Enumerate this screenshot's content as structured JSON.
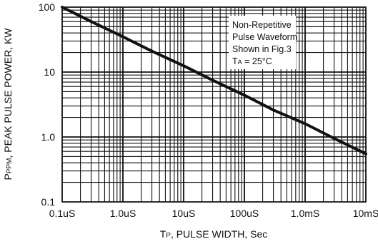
{
  "chart_data": {
    "type": "line",
    "xscale": "log",
    "yscale": "log",
    "xlim": [
      1e-07,
      0.01
    ],
    "ylim": [
      0.1,
      100
    ],
    "grid": true,
    "x_ticks": [
      {
        "value": 1e-07,
        "label": "0.1uS"
      },
      {
        "value": 1e-06,
        "label": "1.0uS"
      },
      {
        "value": 1e-05,
        "label": "10uS"
      },
      {
        "value": 0.0001,
        "label": "100uS"
      },
      {
        "value": 0.001,
        "label": "1.0mS"
      },
      {
        "value": 0.01,
        "label": "10mS"
      }
    ],
    "y_ticks": [
      {
        "value": 100,
        "label": "100"
      },
      {
        "value": 10,
        "label": "10"
      },
      {
        "value": 1,
        "label": "1.0"
      },
      {
        "value": 0.1,
        "label": "0.1"
      }
    ],
    "xlabel": {
      "main": "T",
      "sub": "P",
      "rest": ", PULSE WIDTH, Sec"
    },
    "ylabel": {
      "main": "P",
      "sub": "PPM",
      "rest": ", PEAK PULSE POWER, KW"
    },
    "series": [
      {
        "color": "#111111",
        "x": [
          1e-07,
          3e-07,
          1e-06,
          3e-06,
          1e-05,
          3e-05,
          0.0001,
          0.0003,
          0.001,
          0.003,
          0.01
        ],
        "y": [
          100,
          60,
          35,
          21,
          12.5,
          7.5,
          4.4,
          2.6,
          1.6,
          0.95,
          0.55
        ]
      }
    ],
    "annotation": {
      "lines": [
        "Non-Repetitive",
        "Pulse Waveform",
        "Shown in Fig.3"
      ],
      "last": {
        "prefix": "T",
        "sub": "A",
        "rest": " = 25°C"
      }
    }
  }
}
